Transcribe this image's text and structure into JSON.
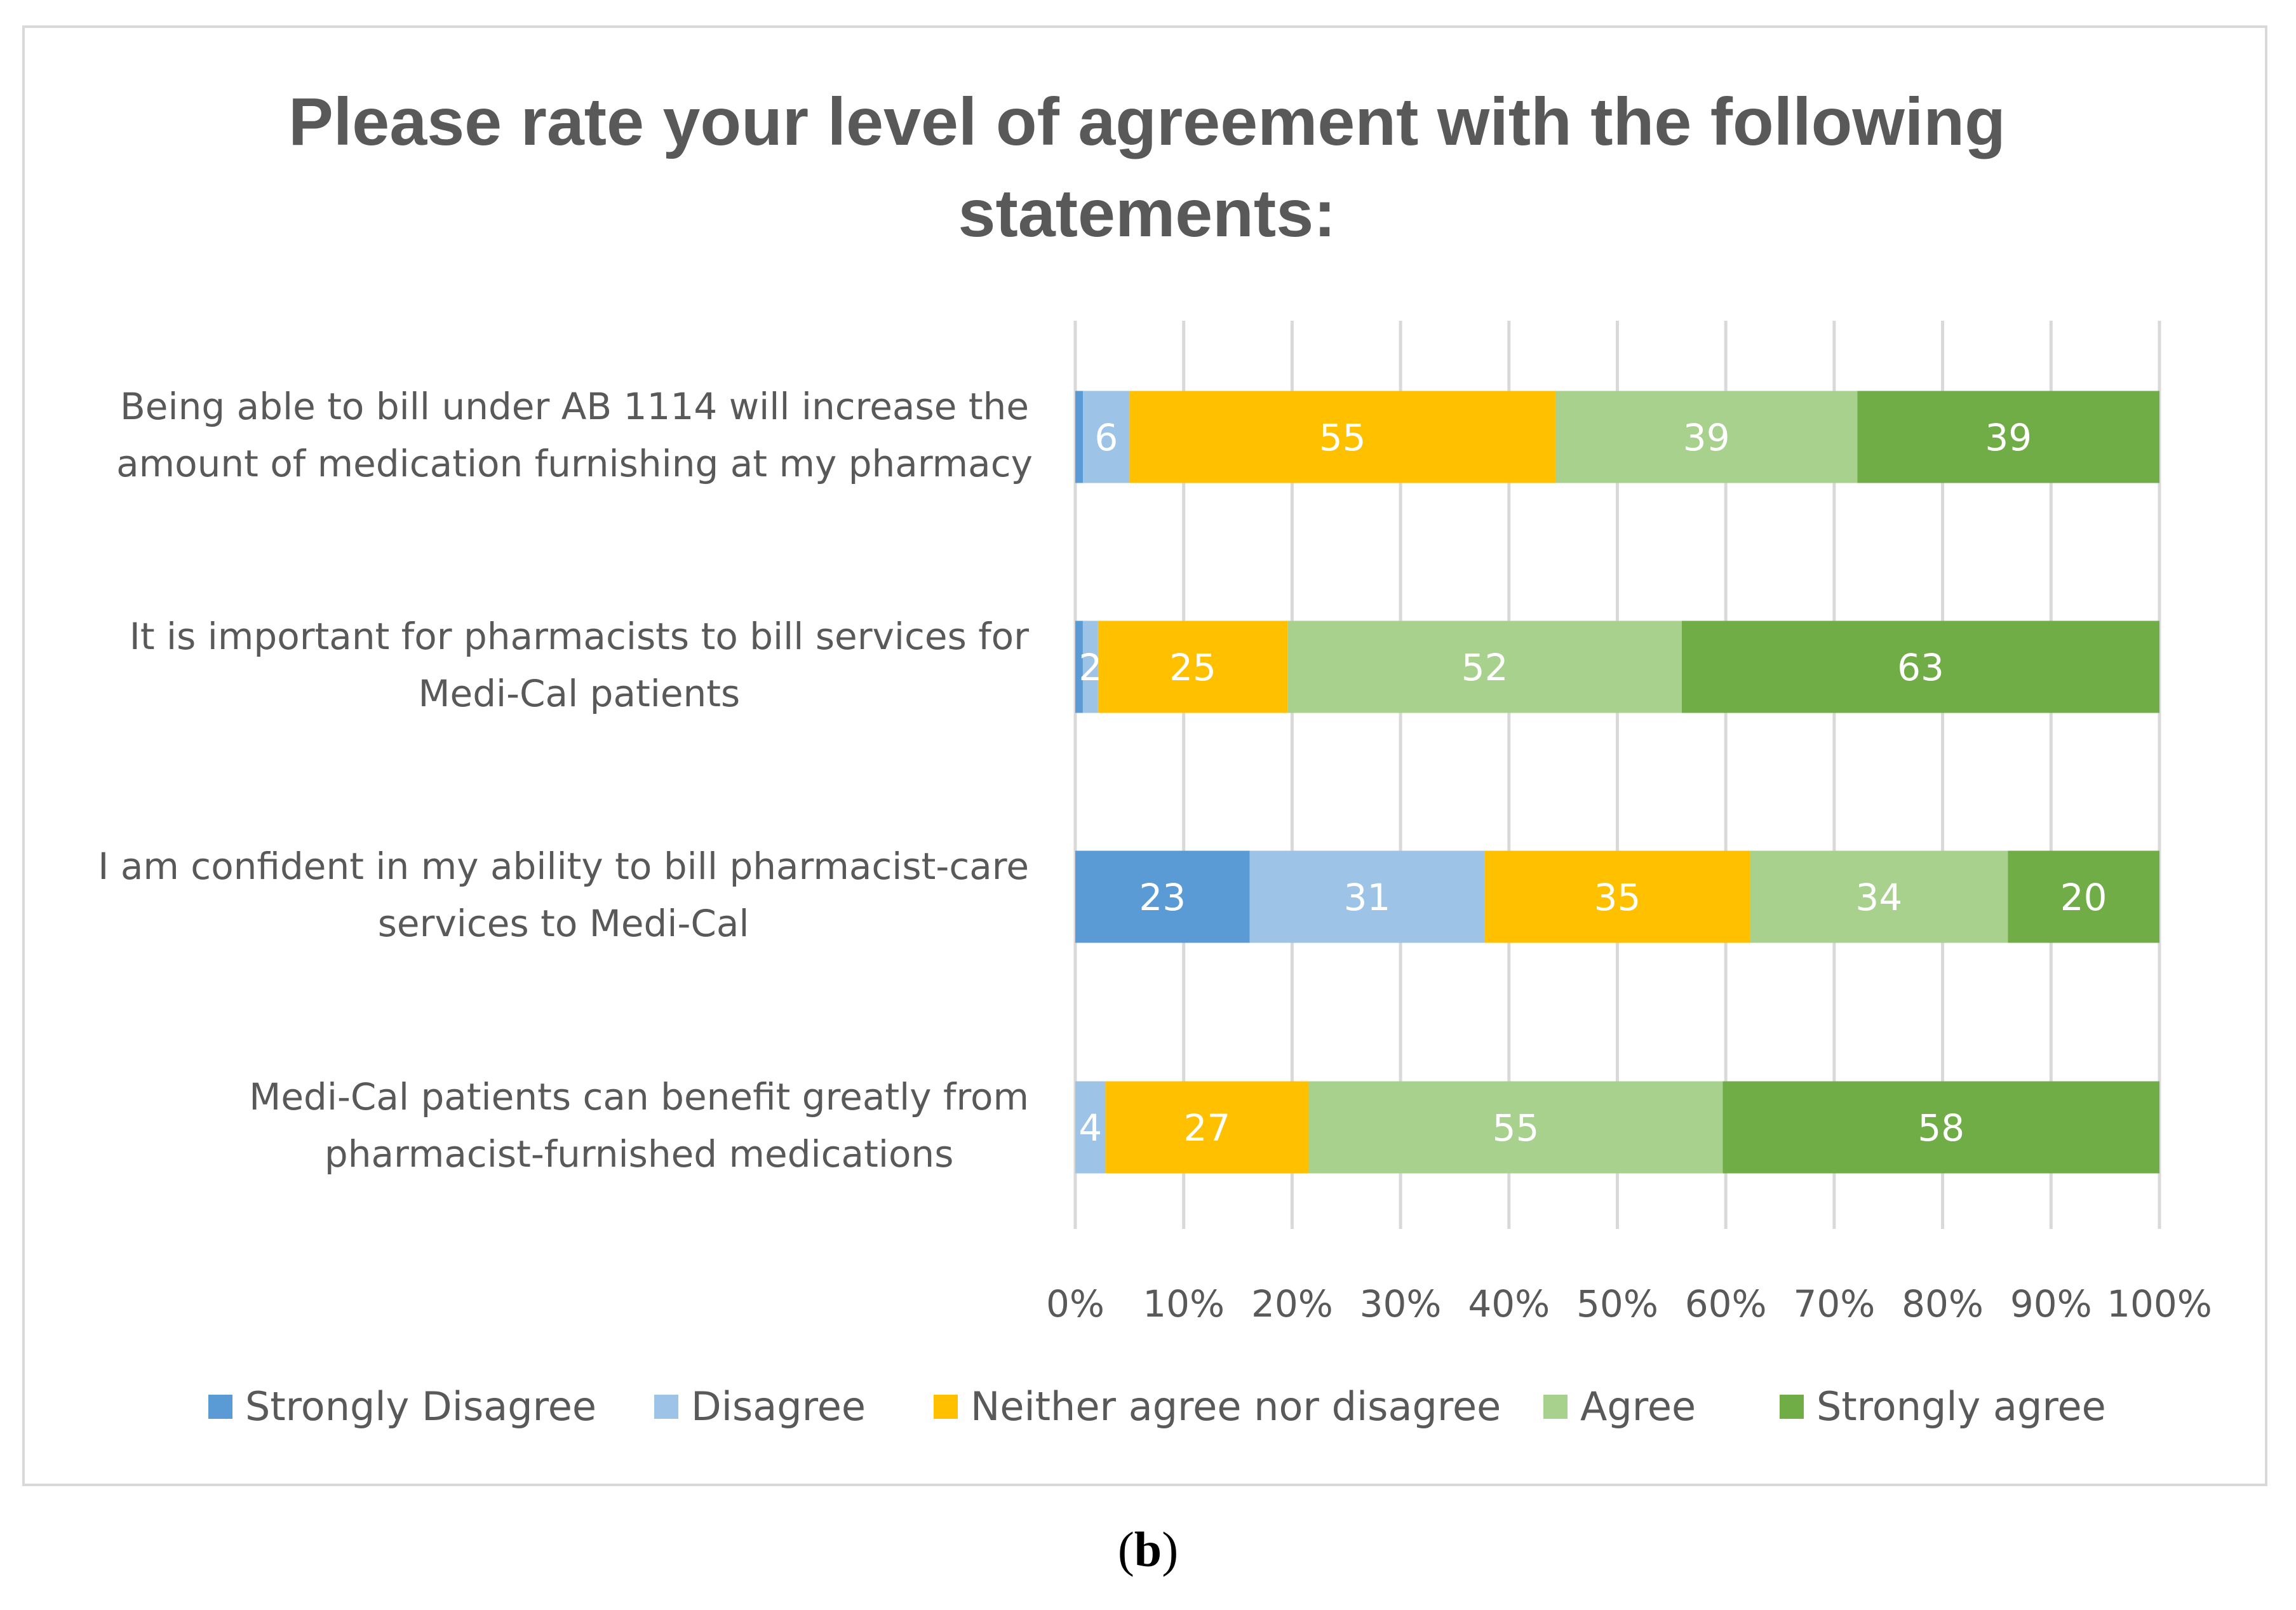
{
  "chart_data": {
    "type": "bar",
    "orientation": "horizontal",
    "stacking": "percent",
    "title": "Please rate your level of agreement with the following statements:",
    "categories": [
      [
        "Being able to bill under AB 1114 will increase the",
        "amount of medication furnishing at my pharmacy"
      ],
      [
        "It is important for pharmacists to bill services for",
        "Medi-Cal patients"
      ],
      [
        "I am confident in my ability to bill pharmacist-care",
        "services to Medi-Cal"
      ],
      [
        "Medi-Cal patients can benefit greatly from",
        "pharmacist-furnished medications"
      ]
    ],
    "series": [
      {
        "name": "Strongly Disagree",
        "color": "#5b9bd5",
        "values": [
          1,
          1,
          23,
          0
        ],
        "labels": [
          "",
          "",
          "23",
          ""
        ]
      },
      {
        "name": "Disagree",
        "color": "#9dc3e6",
        "values": [
          6,
          2,
          31,
          4
        ],
        "labels": [
          "6",
          "2",
          "31",
          "4"
        ]
      },
      {
        "name": "Neither agree nor disagree",
        "color": "#ffc000",
        "values": [
          55,
          25,
          35,
          27
        ],
        "labels": [
          "55",
          "25",
          "35",
          "27"
        ]
      },
      {
        "name": "Agree",
        "color": "#a9d18e",
        "values": [
          39,
          52,
          34,
          55
        ],
        "labels": [
          "39",
          "52",
          "34",
          "55"
        ]
      },
      {
        "name": "Strongly agree",
        "color": "#70ad47",
        "values": [
          39,
          63,
          20,
          58
        ],
        "labels": [
          "39",
          "63",
          "20",
          "58"
        ]
      }
    ],
    "xticks": [
      "0%",
      "10%",
      "20%",
      "30%",
      "40%",
      "50%",
      "60%",
      "70%",
      "80%",
      "90%",
      "100%"
    ],
    "xlim": [
      0,
      100
    ],
    "grid": true,
    "legend": "bottom"
  },
  "caption": {
    "open": "(",
    "letter": "b",
    "close": ")"
  }
}
